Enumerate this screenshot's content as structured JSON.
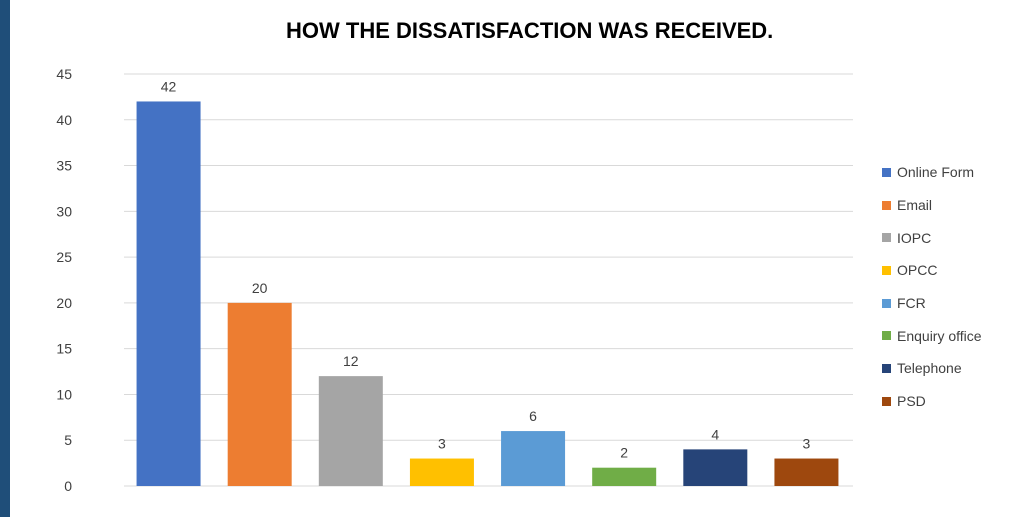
{
  "chart_data": {
    "type": "bar",
    "title": "HOW THE DISSATISFACTION WAS RECEIVED.",
    "categories": [
      "Online Form",
      "Email",
      "IOPC",
      "OPCC",
      "FCR",
      "Enquiry office",
      "Telephone",
      "PSD"
    ],
    "values": [
      42,
      20,
      12,
      3,
      6,
      2,
      4,
      3
    ],
    "colors": [
      "#4472c4",
      "#ed7d31",
      "#a5a5a5",
      "#ffc000",
      "#5b9bd5",
      "#70ad47",
      "#264478",
      "#9e480e"
    ],
    "ylim": [
      0,
      45
    ],
    "yticks": [
      0,
      5,
      10,
      15,
      20,
      25,
      30,
      35,
      40,
      45
    ],
    "grid": true,
    "legend": "right",
    "xlabel": "",
    "ylabel": ""
  }
}
